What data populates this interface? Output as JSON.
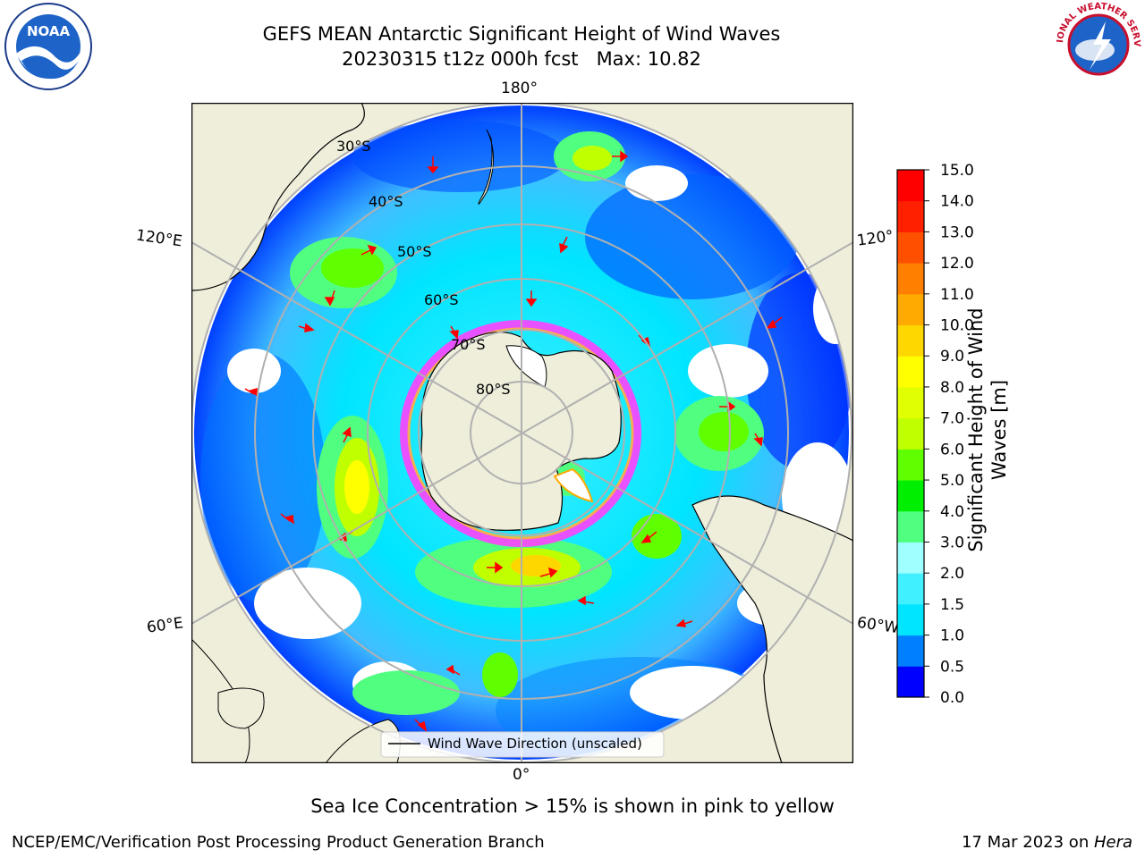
{
  "title": {
    "line1": "GEFS MEAN Antarctic Significant Height of Wind Waves",
    "line2": "20230315 t12z 000h fcst   Max: 10.82"
  },
  "map": {
    "projection": "south-polar-stereographic",
    "lon_labels": {
      "top": "180°",
      "bottom": "0°",
      "left_upper": "120°E",
      "left_lower": "60°E",
      "right_upper": "120°",
      "right_lower": "60°W"
    },
    "lat_labels": [
      "30°S",
      "40°S",
      "50°S",
      "60°S",
      "70°S",
      "80°S"
    ],
    "legend": "Wind Wave Direction (unscaled)"
  },
  "colorbar": {
    "label_line1": "Significant Height of Wind",
    "label_line2": "Waves [m]",
    "ticks": [
      "0.0",
      "0.5",
      "1.0",
      "1.5",
      "2.0",
      "3.0",
      "4.0",
      "5.0",
      "6.0",
      "7.0",
      "8.0",
      "9.0",
      "10.0",
      "11.0",
      "12.0",
      "13.0",
      "14.0",
      "15.0"
    ],
    "colors": [
      "#0000ff",
      "#0080ff",
      "#00e5ff",
      "#40f0ff",
      "#a0ffff",
      "#50ff80",
      "#00ee00",
      "#60ff00",
      "#c0ff00",
      "#e0ff00",
      "#ffff00",
      "#ffd700",
      "#ffaa00",
      "#ff8000",
      "#ff5000",
      "#ff2000",
      "#ff0000"
    ]
  },
  "caption": "Sea Ice Concentration > 15% is shown in pink to yellow",
  "footer": {
    "left": "NCEP/EMC/Verification Post Processing Product Generation Branch",
    "right_date": "17 Mar 2023 on ",
    "right_machine": "Hera"
  },
  "logos": {
    "left": "NOAA",
    "right": "NATIONAL WEATHER SERVICE"
  }
}
